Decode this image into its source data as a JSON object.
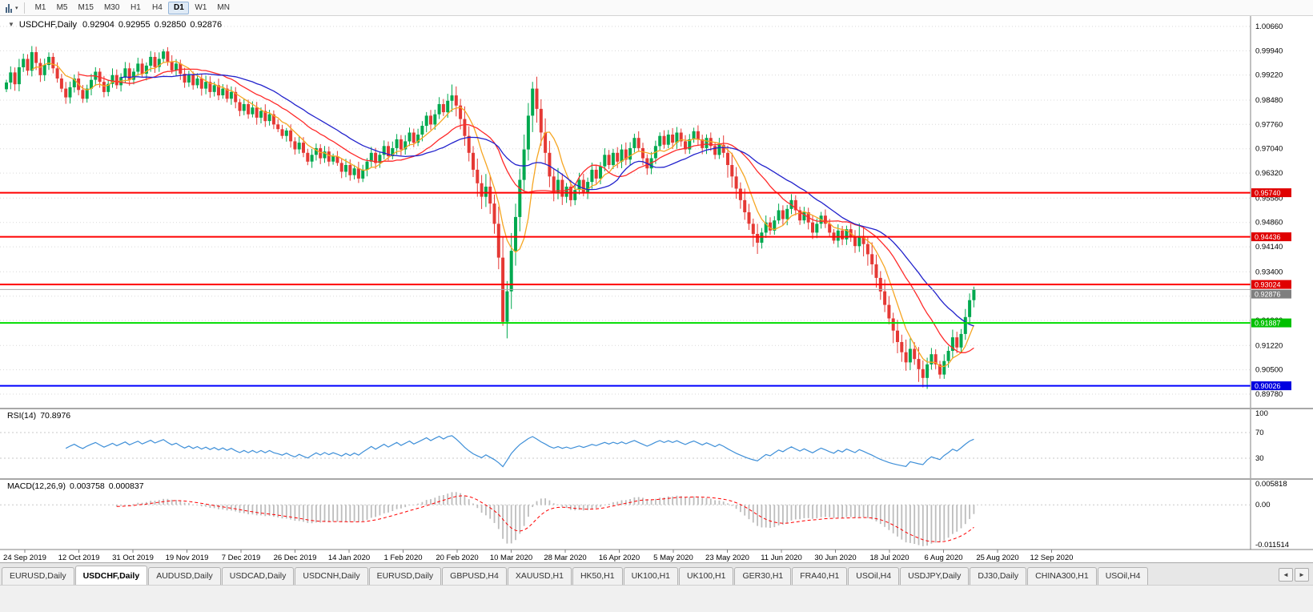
{
  "toolbar": {
    "timeframes": [
      "M1",
      "M5",
      "M15",
      "M30",
      "H1",
      "H4",
      "D1",
      "W1",
      "MN"
    ],
    "active_timeframe": "D1",
    "caret": "▾"
  },
  "chart_header": {
    "collapse_arrow": "▼",
    "symbol": "USDCHF,Daily",
    "open": "0.92904",
    "high": "0.92955",
    "low": "0.92850",
    "close": "0.92876"
  },
  "rsi_panel": {
    "label": "RSI(14)",
    "value": "70.8976",
    "period": 14,
    "levels": [
      "100",
      "70",
      "30"
    ],
    "level_values": [
      100,
      70,
      30
    ],
    "line_color": "#3E8FD8"
  },
  "macd_panel": {
    "label": "MACD(12,26,9)",
    "value_main": "0.003758",
    "value_signal": "0.000837",
    "fast": 12,
    "slow": 26,
    "signal": 9,
    "axis_labels": [
      "0.005818",
      "0.00",
      "-0.011514"
    ],
    "axis_max": 0.005818,
    "axis_min": -0.011514,
    "hist_color": "#BDBDBD",
    "signal_color": "#FF0000"
  },
  "chart_data": {
    "type": "candlestick",
    "symbol": "USDCHF",
    "timeframe": "Daily",
    "current_price": 0.92876,
    "bull_color": "#00A94F",
    "bear_color": "#E53935",
    "first_open": 0.988,
    "closes": [
      0.99,
      0.993,
      0.9895,
      0.9945,
      0.997,
      0.9935,
      0.999,
      0.9958,
      0.9922,
      0.9952,
      0.9976,
      0.9942,
      0.9912,
      0.9882,
      0.9856,
      0.9886,
      0.9912,
      0.9878,
      0.9852,
      0.9882,
      0.9908,
      0.9932,
      0.9902,
      0.9872,
      0.9896,
      0.9922,
      0.9892,
      0.9916,
      0.9942,
      0.9908,
      0.9932,
      0.9956,
      0.9926,
      0.995,
      0.9976,
      0.9946,
      0.997,
      0.9992,
      0.9962,
      0.9936,
      0.9956,
      0.9926,
      0.99,
      0.9922,
      0.9892,
      0.9912,
      0.9882,
      0.9902,
      0.9872,
      0.9892,
      0.9862,
      0.9882,
      0.9852,
      0.9872,
      0.9842,
      0.9816,
      0.9836,
      0.9806,
      0.9826,
      0.9796,
      0.9816,
      0.9786,
      0.9806,
      0.9776,
      0.9762,
      0.9742,
      0.9758,
      0.9726,
      0.9702,
      0.9722,
      0.9692,
      0.9666,
      0.9686,
      0.9706,
      0.9676,
      0.9696,
      0.9666,
      0.9682,
      0.9662,
      0.9636,
      0.9656,
      0.9626,
      0.9646,
      0.9616,
      0.9642,
      0.9666,
      0.9692,
      0.9662,
      0.9686,
      0.9712,
      0.9682,
      0.9706,
      0.9732,
      0.9702,
      0.9726,
      0.9752,
      0.9722,
      0.9746,
      0.9772,
      0.9802,
      0.9776,
      0.9806,
      0.9836,
      0.9812,
      0.9846,
      0.9862,
      0.9832,
      0.9792,
      0.9742,
      0.9692,
      0.9642,
      0.9602,
      0.9562,
      0.9592,
      0.9542,
      0.9482,
      0.9382,
      0.9192,
      0.9282,
      0.9402,
      0.9502,
      0.9612,
      0.9702,
      0.9802,
      0.9882,
      0.9822,
      0.9752,
      0.9692,
      0.9622,
      0.9572,
      0.9612,
      0.9562,
      0.9592,
      0.9552,
      0.9582,
      0.9612,
      0.9576,
      0.9606,
      0.9642,
      0.9616,
      0.9652,
      0.9686,
      0.9656,
      0.9692,
      0.9666,
      0.9702,
      0.9672,
      0.9706,
      0.9736,
      0.9706,
      0.9676,
      0.9646,
      0.9676,
      0.9712,
      0.9742,
      0.9716,
      0.9746,
      0.9722,
      0.9752,
      0.9726,
      0.9702,
      0.9732,
      0.9756,
      0.9732,
      0.9706,
      0.9736,
      0.9712,
      0.9686,
      0.9716,
      0.9692,
      0.9656,
      0.9622,
      0.9586,
      0.9552,
      0.9516,
      0.9482,
      0.9452,
      0.9426,
      0.9456,
      0.9486,
      0.9462,
      0.9492,
      0.9522,
      0.9496,
      0.9526,
      0.9552,
      0.9522,
      0.9492,
      0.9516,
      0.9486,
      0.9456,
      0.9482,
      0.9506,
      0.9482,
      0.9456,
      0.9432,
      0.9462,
      0.9436,
      0.9466,
      0.9442,
      0.9416,
      0.9446,
      0.9422,
      0.9392,
      0.9362,
      0.9322,
      0.9282,
      0.9242,
      0.9202,
      0.9166,
      0.9132,
      0.9102,
      0.9072,
      0.9112,
      0.9082,
      0.9052,
      0.9026,
      0.9066,
      0.9096,
      0.9066,
      0.9036,
      0.9076,
      0.9106,
      0.9146,
      0.9116,
      0.9156,
      0.9206,
      0.9256,
      0.9288
    ],
    "overrides": {
      "6": {
        "high": 1.0008
      },
      "37": {
        "high": 0.9999
      },
      "117": {
        "low": 0.918
      },
      "124": {
        "high": 0.9902
      },
      "216": {
        "low": 0.8998
      },
      "228": {
        "high": 0.9296
      }
    },
    "high_vol_ranges": [
      [
        104,
        130
      ],
      [
        169,
        177
      ],
      [
        200,
        217
      ]
    ],
    "ma": [
      {
        "period": 7,
        "color": "#F6A623",
        "name": "ma-fast-line"
      },
      {
        "period": 18,
        "color": "#FF2A2A",
        "name": "ma-medium-line"
      },
      {
        "period": 28,
        "color": "#2222CC",
        "name": "ma-slow-line"
      }
    ],
    "hlines": [
      {
        "price": 0.9574,
        "label": "0.95740",
        "color": "#FF0000",
        "width": 2,
        "label_bg": "#E00000",
        "name": "resistance-line-0-95740"
      },
      {
        "price": 0.94436,
        "label": "0.94436",
        "color": "#FF0000",
        "width": 2,
        "label_bg": "#E00000",
        "name": "resistance-line-0-94436"
      },
      {
        "price": 0.93024,
        "label": "0.93024",
        "color": "#FF0000",
        "width": 2,
        "label_bg": "#E00000",
        "name": "resistance-line-0-93024"
      },
      {
        "price": 0.92876,
        "label": "0.92876",
        "color": "#ABABAB",
        "width": 1,
        "label_bg": "#7F7F7F",
        "name": "current-price-line"
      },
      {
        "price": 0.91887,
        "label": "0.91887",
        "color": "#00DD00",
        "width": 2,
        "label_bg": "#00C000",
        "name": "support-line-green"
      },
      {
        "price": 0.90026,
        "label": "0.90026",
        "color": "#0000FF",
        "width": 2,
        "label_bg": "#0000E0",
        "name": "support-line-blue"
      }
    ],
    "price_scale": {
      "labels": [
        "1.00660",
        "0.99940",
        "0.99220",
        "0.98480",
        "0.97760",
        "0.97040",
        "0.96320",
        "0.95580",
        "0.94860",
        "0.94140",
        "0.93400",
        "0.92680",
        "0.91960",
        "0.91220",
        "0.90500",
        "0.89780"
      ]
    },
    "date_axis": {
      "labels": [
        "24 Sep 2019",
        "12 Oct 2019",
        "31 Oct 2019",
        "19 Nov 2019",
        "7 Dec 2019",
        "26 Dec 2019",
        "14 Jan 2020",
        "1 Feb 2020",
        "20 Feb 2020",
        "10 Mar 2020",
        "28 Mar 2020",
        "16 Apr 2020",
        "5 May 2020",
        "23 May 2020",
        "11 Jun 2020",
        "30 Jun 2020",
        "18 Jul 2020",
        "6 Aug 2020",
        "25 Aug 2020",
        "12 Sep 2020"
      ]
    }
  },
  "tabs": {
    "items": [
      "EURUSD,Daily",
      "USDCHF,Daily",
      "AUDUSD,Daily",
      "USDCAD,Daily",
      "USDCNH,Daily",
      "EURUSD,Daily",
      "GBPUSD,H4",
      "XAUUSD,H1",
      "HK50,H1",
      "UK100,H1",
      "UK100,H1",
      "GER30,H1",
      "FRA40,H1",
      "USOil,H4",
      "USDJPY,Daily",
      "DJ30,Daily",
      "CHINA300,H1",
      "USOil,H4"
    ],
    "active_index": 1,
    "scroll_left": "◄",
    "scroll_right": "►"
  }
}
